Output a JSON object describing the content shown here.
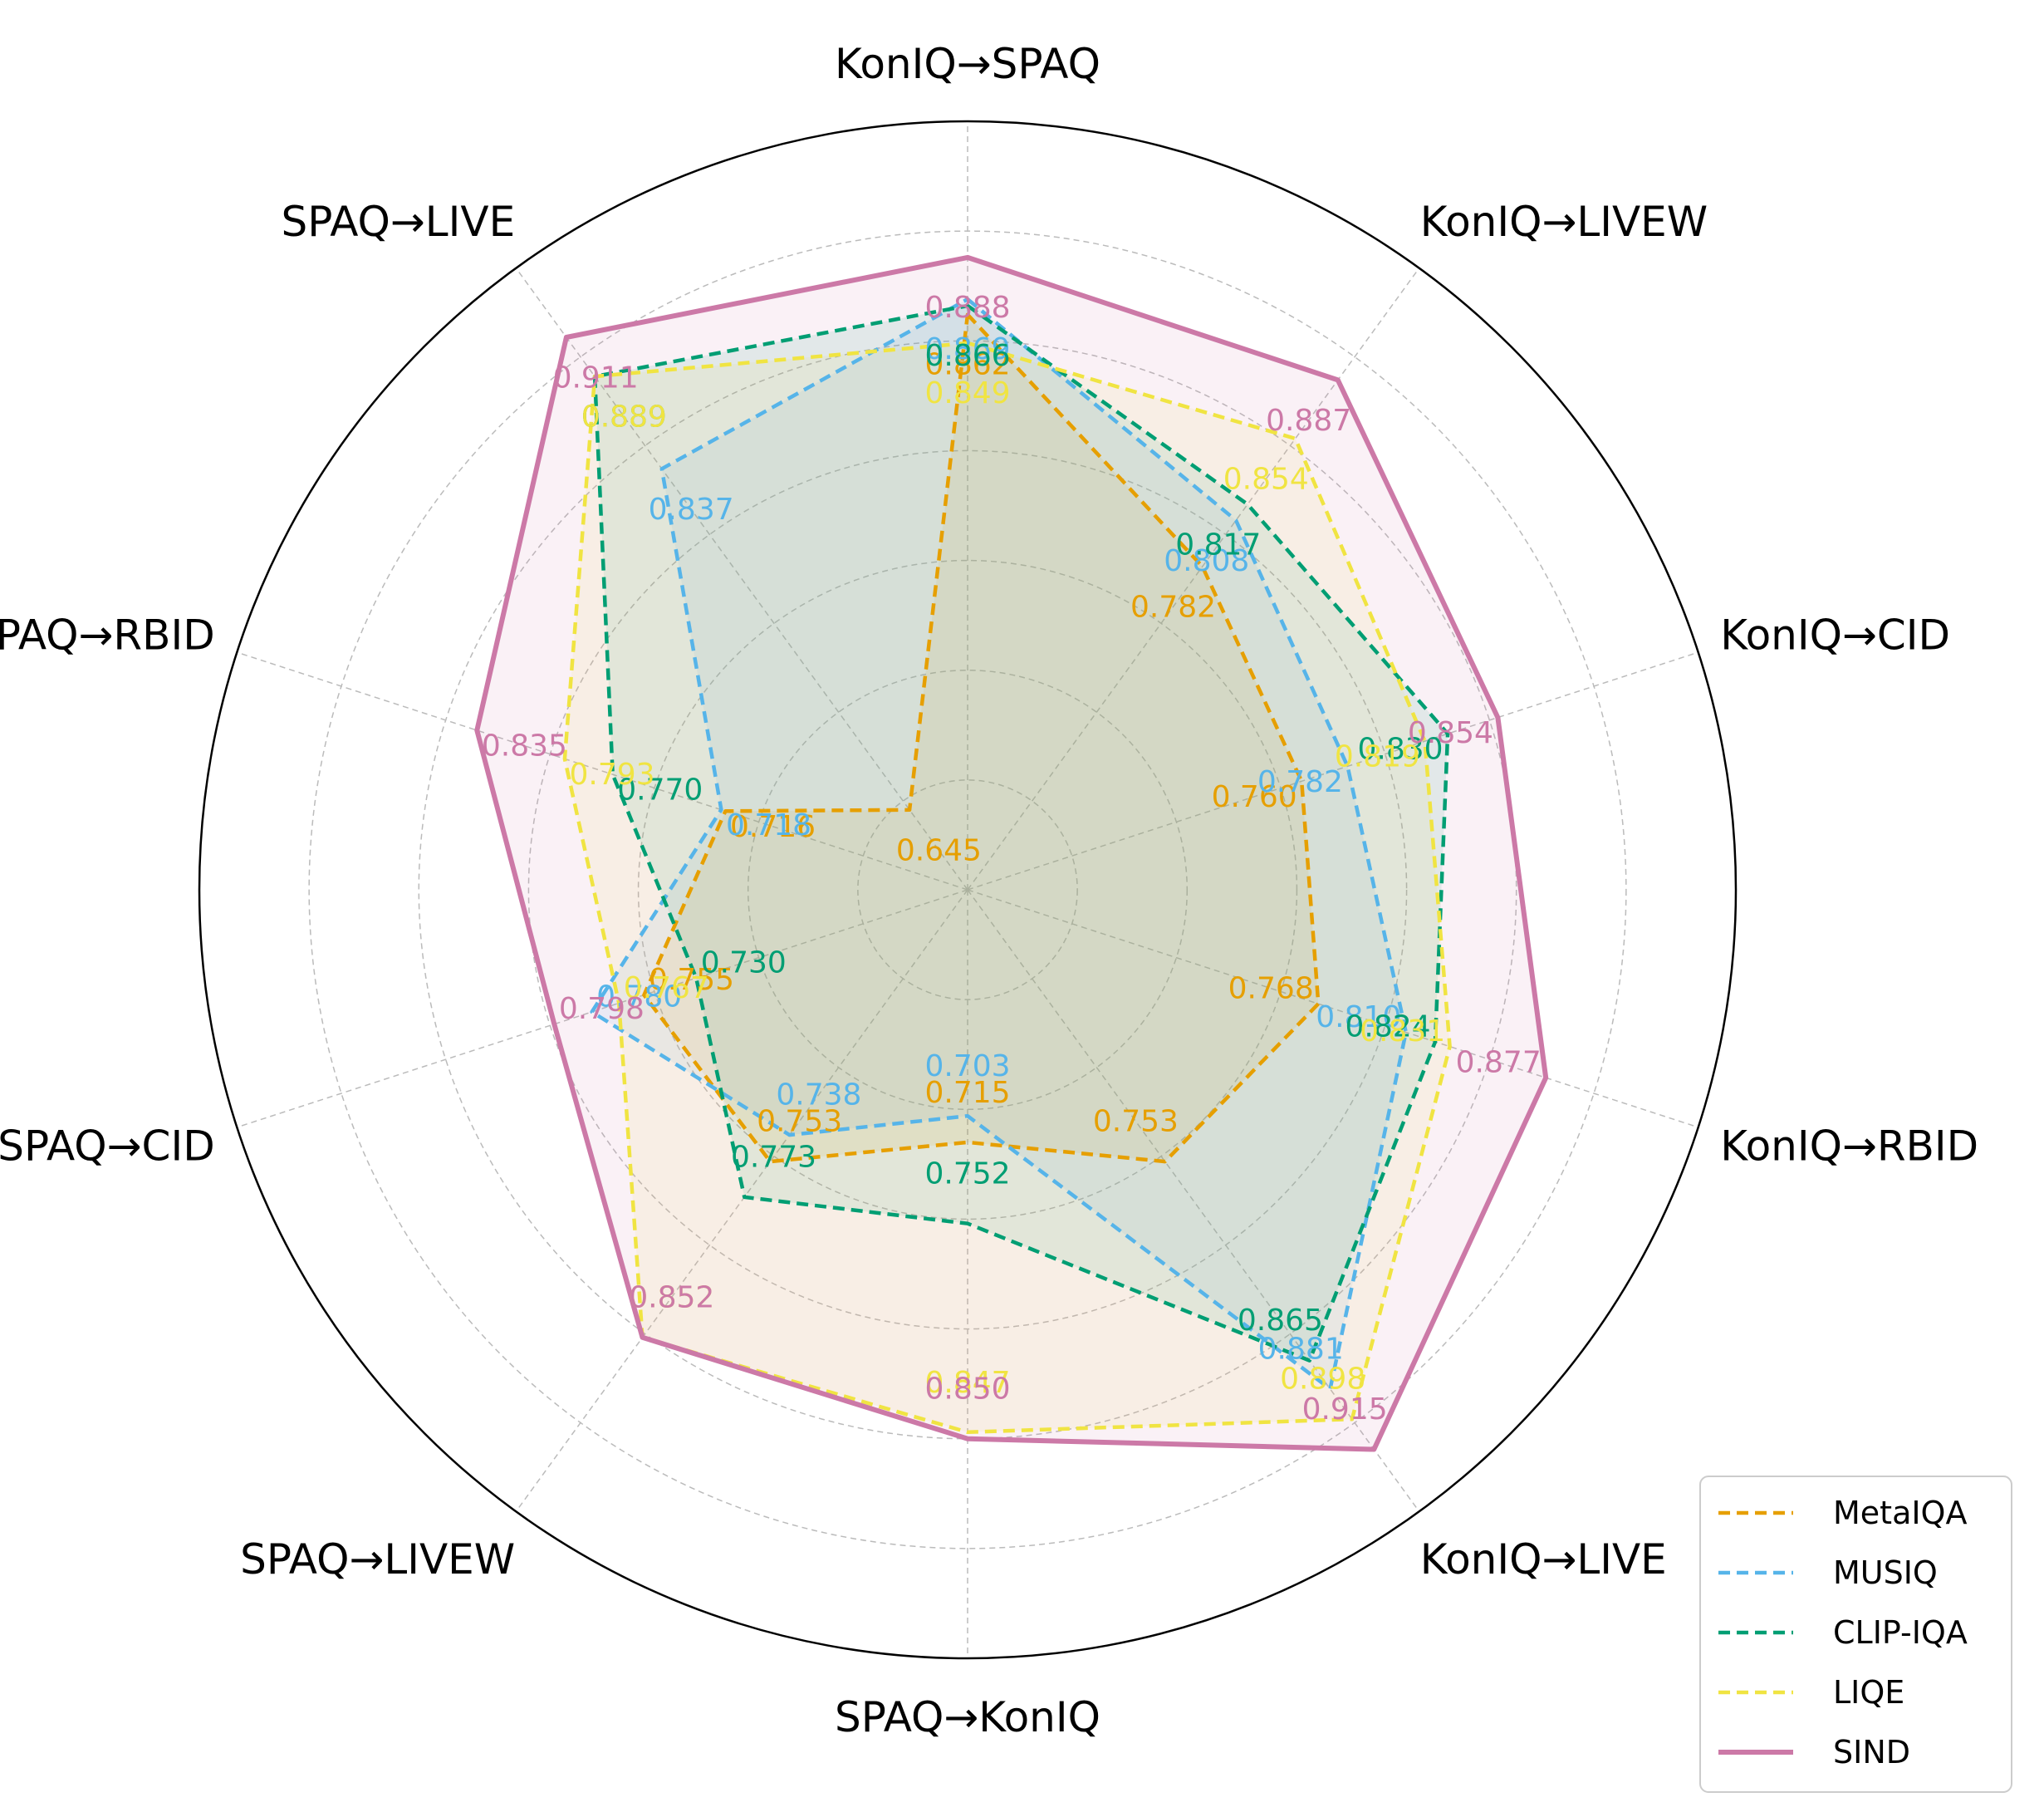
{
  "chart_data": {
    "type": "radar",
    "categories": [
      "KonIQ→SPAQ",
      "KonIQ→LIVEW",
      "KonIQ→CID",
      "KonIQ→RBID",
      "KonIQ→LIVE",
      "SPAQ→KonIQ",
      "SPAQ→LIVEW",
      "SPAQ→CID",
      "SPAQ→RBID",
      "SPAQ→LIVE"
    ],
    "rlim": [
      0.6,
      0.95
    ],
    "grid": true,
    "legend_position": "bottom-right",
    "series": [
      {
        "name": "MetaIQA",
        "color": "#E69F00",
        "style": "dashed",
        "values": [
          0.862,
          0.782,
          0.76,
          0.768,
          0.753,
          0.715,
          0.753,
          0.755,
          0.716,
          0.645
        ]
      },
      {
        "name": "MUSIQ",
        "color": "#56B4E9",
        "style": "dashed",
        "values": [
          0.869,
          0.808,
          0.782,
          0.81,
          0.881,
          0.703,
          0.738,
          0.78,
          0.718,
          0.837
        ]
      },
      {
        "name": "CLIP-IQA",
        "color": "#009E73",
        "style": "dashed",
        "values": [
          0.866,
          0.817,
          0.83,
          0.824,
          0.865,
          0.752,
          0.773,
          0.73,
          0.77,
          0.889
        ]
      },
      {
        "name": "LIQE",
        "color": "#F0E442",
        "style": "dashed",
        "values": [
          0.849,
          0.854,
          0.819,
          0.831,
          0.898,
          0.847,
          0.852,
          0.767,
          0.793,
          0.889
        ]
      },
      {
        "name": "SIND",
        "color": "#CC79A7",
        "style": "solid",
        "values": [
          0.888,
          0.887,
          0.854,
          0.877,
          0.915,
          0.85,
          0.852,
          0.798,
          0.835,
          0.911
        ]
      }
    ]
  }
}
